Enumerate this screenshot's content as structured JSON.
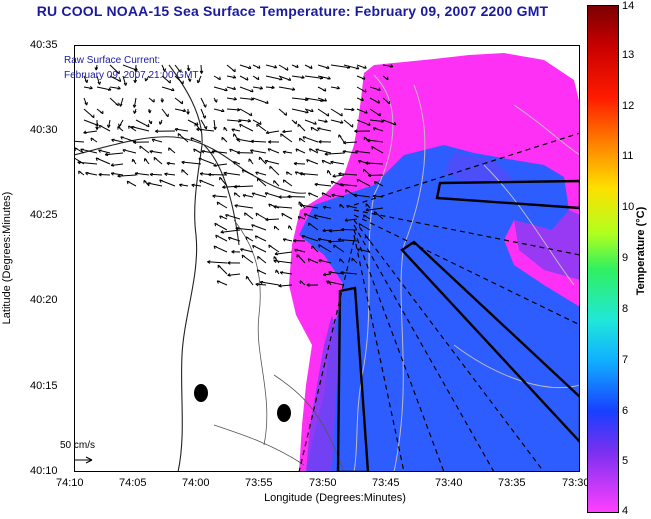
{
  "title": "RU COOL  NOAA-15  Sea Surface Temperature:  February 09, 2007 2200 GMT",
  "overlay": {
    "line1": "Raw Surface Current:",
    "line2": "February 09, 2007 21:00 GMT"
  },
  "scale_label": "50 cm/s",
  "x_axis": {
    "title": "Longitude (Degrees:Minutes)",
    "ticks": [
      "74:10",
      "74:05",
      "74:00",
      "73:55",
      "73:50",
      "73:45",
      "73:40",
      "73:35",
      "73:30"
    ]
  },
  "y_axis": {
    "title": "Latitude (Degrees:Minutes)",
    "ticks": [
      "40:35",
      "40:30",
      "40:25",
      "40:20",
      "40:15",
      "40:10"
    ]
  },
  "colorbar": {
    "title": "Temperature (°C)",
    "ticks": [
      "14",
      "13",
      "12",
      "11",
      "10",
      "9",
      "8",
      "7",
      "6",
      "5",
      "4"
    ],
    "range": [
      4,
      14
    ]
  },
  "colors": {
    "water_cold_magenta": "#ff22ff",
    "water_blue": "#2a55ff",
    "water_purple": "#8a2cf0",
    "title_blue": "#1a1aa0"
  }
}
